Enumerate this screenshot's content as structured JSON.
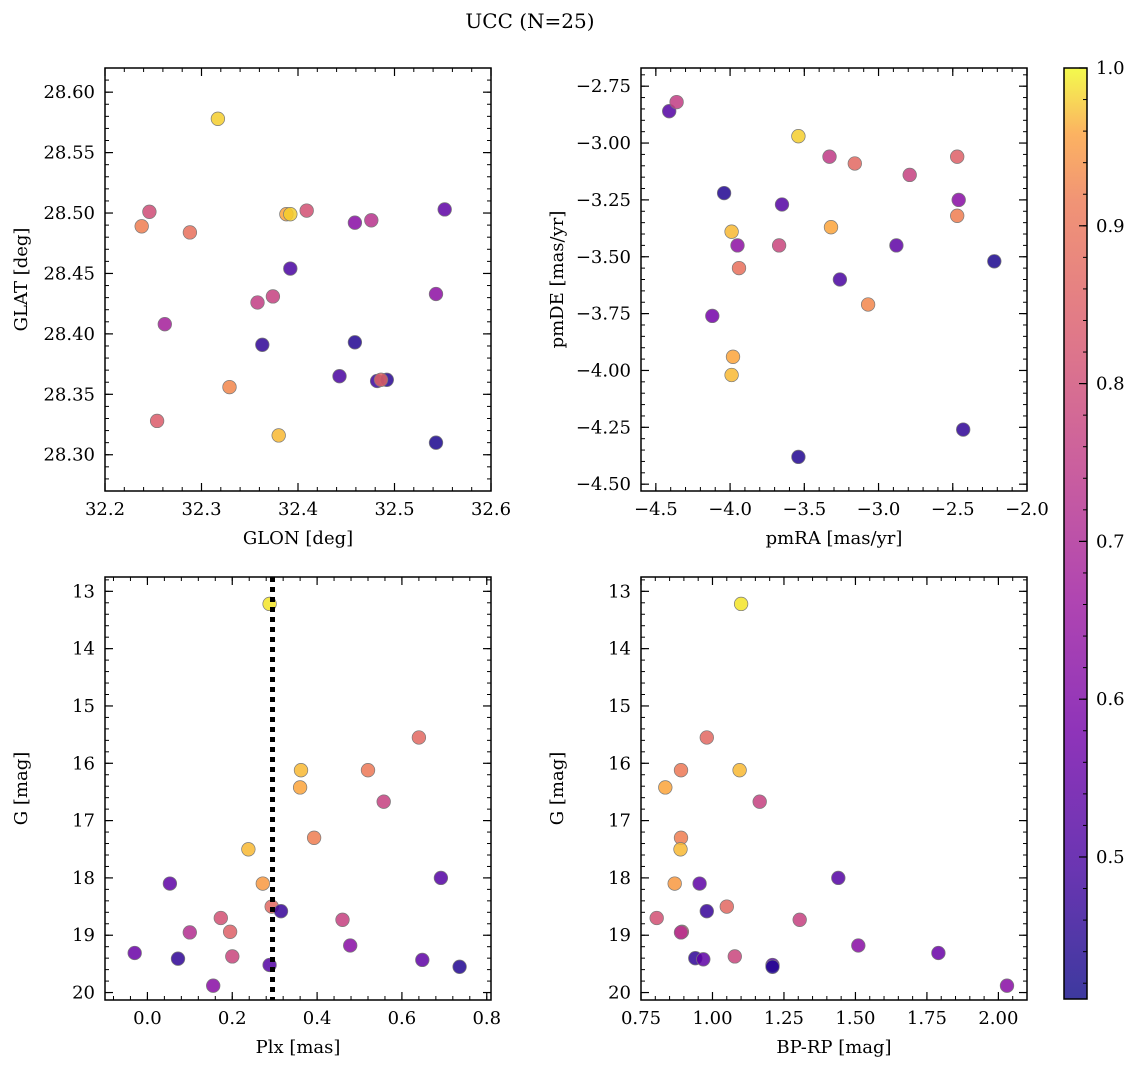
{
  "figure": {
    "title": "UCC (N=25)"
  },
  "colorbar": {
    "colormap": "plasma",
    "range": [
      0.41,
      1.0
    ],
    "ticks": [
      0.5,
      0.6,
      0.7,
      0.8,
      0.9,
      1.0
    ],
    "tick_labels": [
      "0.5",
      "0.6",
      "0.7",
      "0.8",
      "0.9",
      "1.0"
    ]
  },
  "chart_data": [
    {
      "type": "scatter",
      "panel": "top-left",
      "xlabel": "GLON [deg]",
      "ylabel": "GLAT [deg]",
      "xlim": [
        32.2,
        32.6
      ],
      "ylim": [
        28.27,
        28.62
      ],
      "y_inverted": false,
      "xticks": [
        32.2,
        32.3,
        32.4,
        32.5,
        32.6
      ],
      "xtick_labels": [
        "32.2",
        "32.3",
        "32.4",
        "32.5",
        "32.6"
      ],
      "yticks": [
        28.3,
        28.35,
        28.4,
        28.45,
        28.5,
        28.55,
        28.6
      ],
      "ytick_labels": [
        "28.30",
        "28.35",
        "28.40",
        "28.45",
        "28.50",
        "28.55",
        "28.60"
      ],
      "points": [
        {
          "x": 32.317,
          "y": 28.578,
          "c": 0.98
        },
        {
          "x": 32.238,
          "y": 28.489,
          "c": 0.92
        },
        {
          "x": 32.246,
          "y": 28.501,
          "c": 0.8
        },
        {
          "x": 32.288,
          "y": 28.484,
          "c": 0.89
        },
        {
          "x": 32.388,
          "y": 28.499,
          "c": 0.96
        },
        {
          "x": 32.392,
          "y": 28.499,
          "c": 0.98
        },
        {
          "x": 32.409,
          "y": 28.502,
          "c": 0.81
        },
        {
          "x": 32.459,
          "y": 28.492,
          "c": 0.62
        },
        {
          "x": 32.476,
          "y": 28.494,
          "c": 0.73
        },
        {
          "x": 32.552,
          "y": 28.503,
          "c": 0.54
        },
        {
          "x": 32.392,
          "y": 28.454,
          "c": 0.5
        },
        {
          "x": 32.543,
          "y": 28.433,
          "c": 0.63
        },
        {
          "x": 32.358,
          "y": 28.426,
          "c": 0.76
        },
        {
          "x": 32.374,
          "y": 28.431,
          "c": 0.77
        },
        {
          "x": 32.262,
          "y": 28.408,
          "c": 0.68
        },
        {
          "x": 32.363,
          "y": 28.391,
          "c": 0.46
        },
        {
          "x": 32.459,
          "y": 28.393,
          "c": 0.44
        },
        {
          "x": 32.443,
          "y": 28.365,
          "c": 0.5
        },
        {
          "x": 32.482,
          "y": 28.361,
          "c": 0.48
        },
        {
          "x": 32.492,
          "y": 28.362,
          "c": 0.45
        },
        {
          "x": 32.486,
          "y": 28.362,
          "c": 0.86
        },
        {
          "x": 32.329,
          "y": 28.356,
          "c": 0.93
        },
        {
          "x": 32.254,
          "y": 28.328,
          "c": 0.84
        },
        {
          "x": 32.38,
          "y": 28.316,
          "c": 0.97
        },
        {
          "x": 32.543,
          "y": 28.31,
          "c": 0.43
        }
      ]
    },
    {
      "type": "scatter",
      "panel": "top-right",
      "xlabel": "pmRA [mas/yr]",
      "ylabel": "pmDE [mas/yr]",
      "xlim": [
        -4.6,
        -2.0
      ],
      "ylim": [
        -4.53,
        -2.67
      ],
      "y_inverted": false,
      "xticks": [
        -4.5,
        -4.0,
        -3.5,
        -3.0,
        -2.5,
        -2.0
      ],
      "xtick_labels": [
        "−4.5",
        "−4.0",
        "−3.5",
        "−3.0",
        "−2.5",
        "−2.0"
      ],
      "yticks": [
        -4.5,
        -4.25,
        -4.0,
        -3.75,
        -3.5,
        -3.25,
        -3.0,
        -2.75
      ],
      "ytick_labels": [
        "−4.50",
        "−4.25",
        "−4.00",
        "−3.75",
        "−3.50",
        "−3.25",
        "−3.00",
        "−2.75"
      ],
      "points": [
        {
          "x": -4.41,
          "y": -2.86,
          "c": 0.52
        },
        {
          "x": -4.36,
          "y": -2.82,
          "c": 0.76
        },
        {
          "x": -3.54,
          "y": -2.97,
          "c": 0.98
        },
        {
          "x": -3.33,
          "y": -3.06,
          "c": 0.75
        },
        {
          "x": -3.16,
          "y": -3.09,
          "c": 0.87
        },
        {
          "x": -2.47,
          "y": -3.06,
          "c": 0.85
        },
        {
          "x": -2.79,
          "y": -3.14,
          "c": 0.77
        },
        {
          "x": -4.04,
          "y": -3.22,
          "c": 0.44
        },
        {
          "x": -3.65,
          "y": -3.27,
          "c": 0.52
        },
        {
          "x": -2.46,
          "y": -3.25,
          "c": 0.62
        },
        {
          "x": -2.47,
          "y": -3.32,
          "c": 0.92
        },
        {
          "x": -3.99,
          "y": -3.39,
          "c": 0.97
        },
        {
          "x": -3.32,
          "y": -3.37,
          "c": 0.96
        },
        {
          "x": -3.95,
          "y": -3.45,
          "c": 0.63
        },
        {
          "x": -3.67,
          "y": -3.45,
          "c": 0.78
        },
        {
          "x": -2.88,
          "y": -3.45,
          "c": 0.54
        },
        {
          "x": -3.94,
          "y": -3.55,
          "c": 0.89
        },
        {
          "x": -2.22,
          "y": -3.52,
          "c": 0.43
        },
        {
          "x": -3.26,
          "y": -3.6,
          "c": 0.5
        },
        {
          "x": -3.07,
          "y": -3.71,
          "c": 0.93
        },
        {
          "x": -4.12,
          "y": -3.76,
          "c": 0.58
        },
        {
          "x": -3.98,
          "y": -3.94,
          "c": 0.96
        },
        {
          "x": -3.99,
          "y": -4.02,
          "c": 0.97
        },
        {
          "x": -2.43,
          "y": -4.26,
          "c": 0.46
        },
        {
          "x": -3.54,
          "y": -4.38,
          "c": 0.44
        }
      ]
    },
    {
      "type": "scatter",
      "panel": "bottom-left",
      "xlabel": "Plx [mas]",
      "ylabel": "G [mag]",
      "xlim": [
        -0.1,
        0.81
      ],
      "ylim": [
        20.13,
        12.75
      ],
      "y_inverted": true,
      "xticks": [
        0.0,
        0.2,
        0.4,
        0.6,
        0.8
      ],
      "xtick_labels": [
        "0.0",
        "0.2",
        "0.4",
        "0.6",
        "0.8"
      ],
      "yticks": [
        13,
        14,
        15,
        16,
        17,
        18,
        19,
        20
      ],
      "ytick_labels": [
        "13",
        "14",
        "15",
        "16",
        "17",
        "18",
        "19",
        "20"
      ],
      "vline": {
        "x": 0.295,
        "style": "dotted"
      },
      "points": [
        {
          "x": 0.288,
          "y": 13.22,
          "c": 0.99
        },
        {
          "x": 0.64,
          "y": 15.55,
          "c": 0.87
        },
        {
          "x": 0.362,
          "y": 16.12,
          "c": 0.97
        },
        {
          "x": 0.52,
          "y": 16.12,
          "c": 0.91
        },
        {
          "x": 0.36,
          "y": 16.42,
          "c": 0.96
        },
        {
          "x": 0.557,
          "y": 16.67,
          "c": 0.77
        },
        {
          "x": 0.393,
          "y": 17.3,
          "c": 0.92
        },
        {
          "x": 0.238,
          "y": 17.5,
          "c": 0.97
        },
        {
          "x": 0.692,
          "y": 18.0,
          "c": 0.52
        },
        {
          "x": 0.053,
          "y": 18.1,
          "c": 0.54
        },
        {
          "x": 0.272,
          "y": 18.1,
          "c": 0.95
        },
        {
          "x": 0.293,
          "y": 18.5,
          "c": 0.87
        },
        {
          "x": 0.315,
          "y": 18.58,
          "c": 0.47
        },
        {
          "x": 0.173,
          "y": 18.7,
          "c": 0.81
        },
        {
          "x": 0.46,
          "y": 18.73,
          "c": 0.77
        },
        {
          "x": 0.1,
          "y": 18.95,
          "c": 0.72
        },
        {
          "x": 0.195,
          "y": 18.94,
          "c": 0.85
        },
        {
          "x": 0.478,
          "y": 19.18,
          "c": 0.62
        },
        {
          "x": -0.03,
          "y": 19.31,
          "c": 0.56
        },
        {
          "x": 0.2,
          "y": 19.37,
          "c": 0.78
        },
        {
          "x": 0.072,
          "y": 19.41,
          "c": 0.46
        },
        {
          "x": 0.648,
          "y": 19.43,
          "c": 0.54
        },
        {
          "x": 0.288,
          "y": 19.52,
          "c": 0.52
        },
        {
          "x": 0.736,
          "y": 19.55,
          "c": 0.44
        },
        {
          "x": 0.155,
          "y": 19.88,
          "c": 0.62
        }
      ]
    },
    {
      "type": "scatter",
      "panel": "bottom-right",
      "xlabel": "BP-RP [mag]",
      "ylabel": "G [mag]",
      "xlim": [
        0.75,
        2.1
      ],
      "ylim": [
        20.13,
        12.75
      ],
      "y_inverted": true,
      "xticks": [
        0.75,
        1.0,
        1.25,
        1.5,
        1.75,
        2.0
      ],
      "xtick_labels": [
        "0.75",
        "1.00",
        "1.25",
        "1.50",
        "1.75",
        "2.00"
      ],
      "yticks": [
        13,
        14,
        15,
        16,
        17,
        18,
        19,
        20
      ],
      "ytick_labels": [
        "13",
        "14",
        "15",
        "16",
        "17",
        "18",
        "19",
        "20"
      ],
      "points": [
        {
          "x": 1.1,
          "y": 13.22,
          "c": 0.99
        },
        {
          "x": 0.98,
          "y": 15.55,
          "c": 0.87
        },
        {
          "x": 0.89,
          "y": 16.12,
          "c": 0.91
        },
        {
          "x": 1.095,
          "y": 16.12,
          "c": 0.97
        },
        {
          "x": 0.835,
          "y": 16.42,
          "c": 0.96
        },
        {
          "x": 1.165,
          "y": 16.67,
          "c": 0.77
        },
        {
          "x": 0.89,
          "y": 17.3,
          "c": 0.92
        },
        {
          "x": 0.888,
          "y": 17.5,
          "c": 0.97
        },
        {
          "x": 1.44,
          "y": 18.0,
          "c": 0.52
        },
        {
          "x": 0.868,
          "y": 18.1,
          "c": 0.95
        },
        {
          "x": 0.955,
          "y": 18.1,
          "c": 0.54
        },
        {
          "x": 1.05,
          "y": 18.5,
          "c": 0.87
        },
        {
          "x": 0.98,
          "y": 18.58,
          "c": 0.47
        },
        {
          "x": 0.805,
          "y": 18.7,
          "c": 0.81
        },
        {
          "x": 1.305,
          "y": 18.73,
          "c": 0.77
        },
        {
          "x": 0.893,
          "y": 18.94,
          "c": 0.85
        },
        {
          "x": 0.89,
          "y": 18.95,
          "c": 0.72
        },
        {
          "x": 1.51,
          "y": 19.18,
          "c": 0.62
        },
        {
          "x": 1.79,
          "y": 19.31,
          "c": 0.56
        },
        {
          "x": 1.078,
          "y": 19.37,
          "c": 0.78
        },
        {
          "x": 0.94,
          "y": 19.4,
          "c": 0.46
        },
        {
          "x": 0.968,
          "y": 19.42,
          "c": 0.54
        },
        {
          "x": 1.21,
          "y": 19.52,
          "c": 0.52
        },
        {
          "x": 1.21,
          "y": 19.55,
          "c": 0.44
        },
        {
          "x": 2.03,
          "y": 19.88,
          "c": 0.62
        }
      ]
    }
  ]
}
